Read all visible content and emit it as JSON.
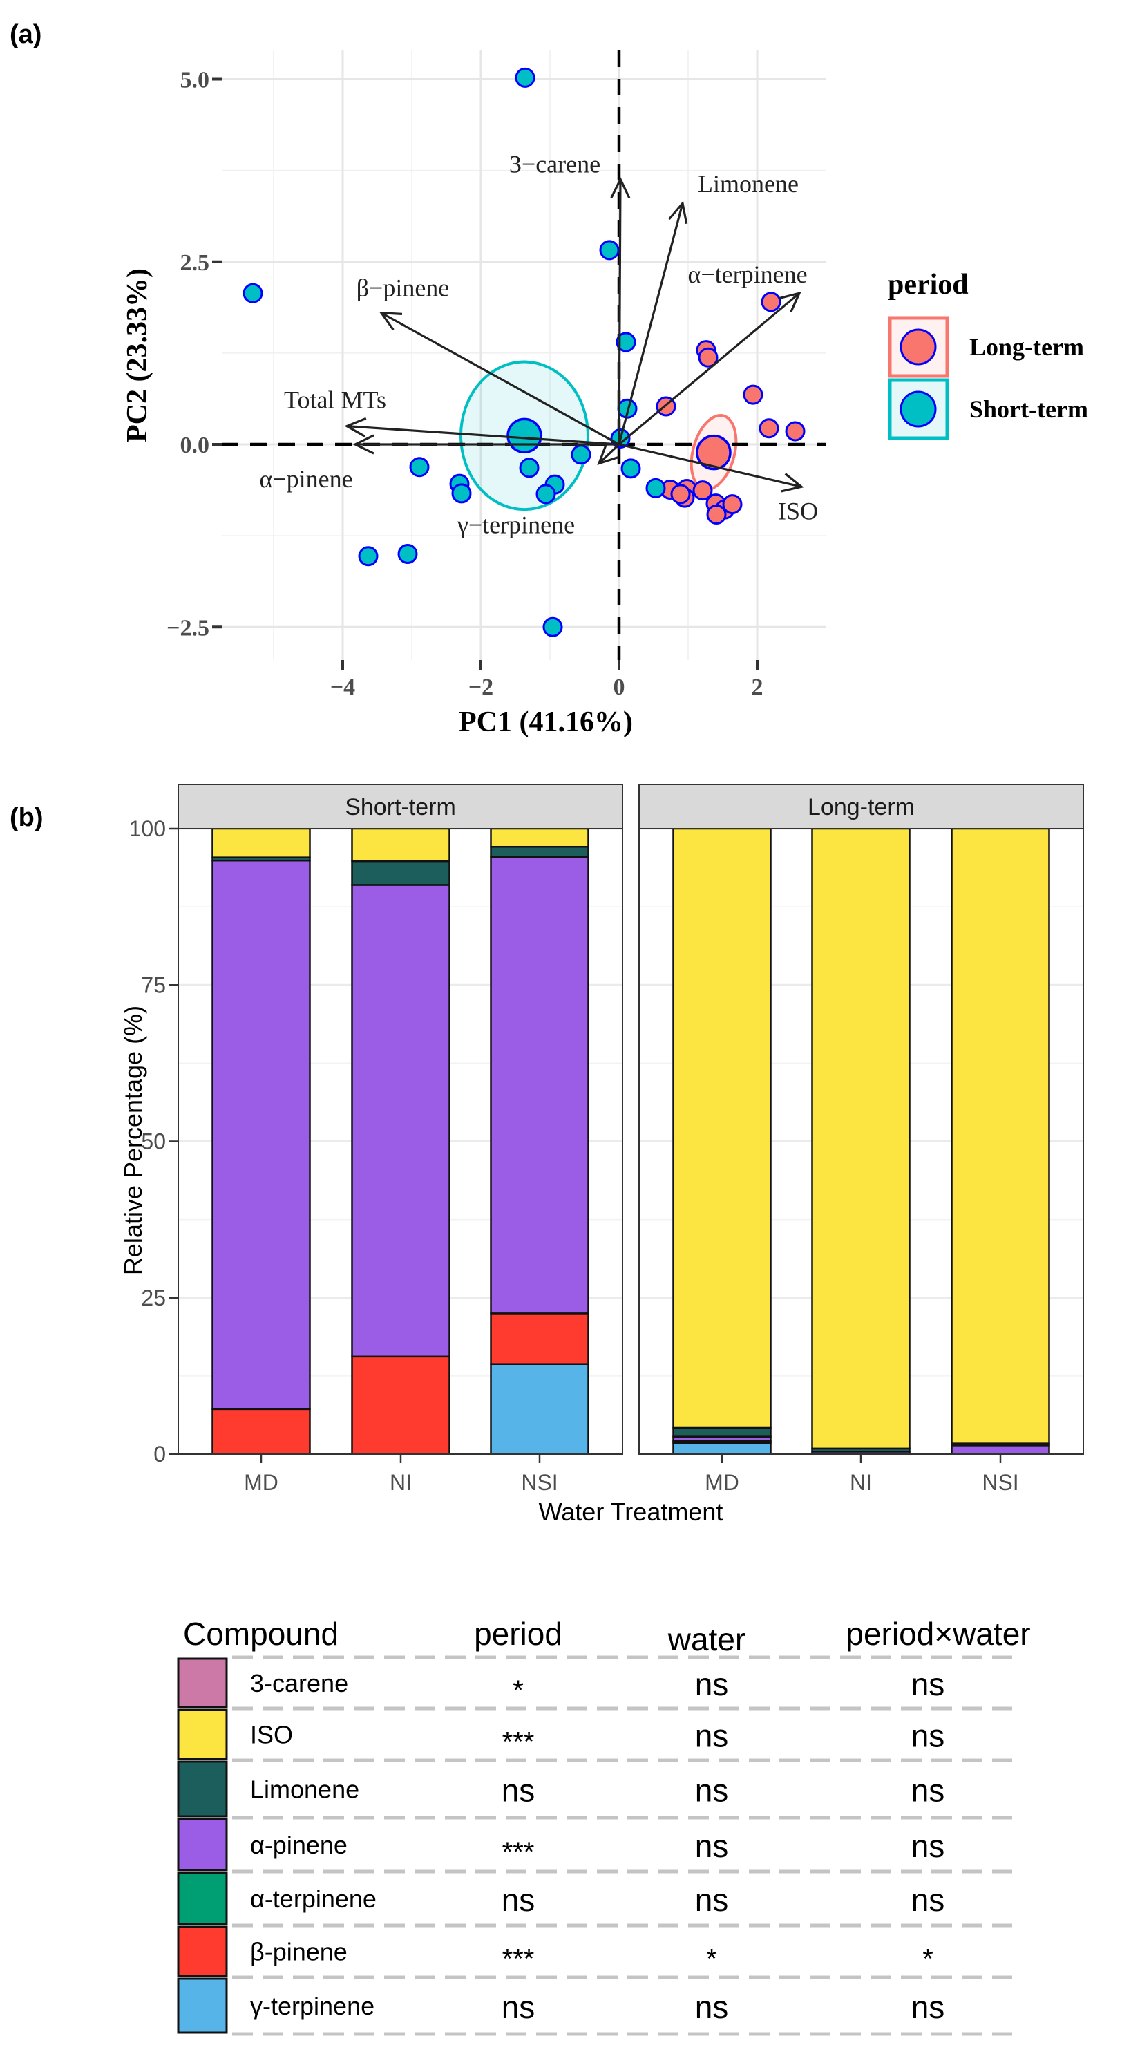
{
  "chart_data": [
    {
      "type": "scatter",
      "panel_label": "(a)",
      "title": "",
      "xlabel": "PC1 (41.16%)",
      "ylabel": "PC2 (23.33%)",
      "xlim": [
        -5.75,
        3.0
      ],
      "ylim": [
        -2.95,
        5.35
      ],
      "grid": true,
      "xticks": [
        -4,
        -2,
        0,
        2
      ],
      "xtick_labels": [
        "−4",
        "−2",
        "0",
        "2"
      ],
      "yticks": [
        -2.5,
        0,
        2.5,
        5
      ],
      "ytick_labels": [
        "−2.5",
        "0.0",
        "2.5",
        "5.0"
      ],
      "reference_lines": {
        "x": 0,
        "y": 0,
        "style": "dashed"
      },
      "legend": {
        "title": "period",
        "placement": "right",
        "entries": [
          {
            "label": "Long-term",
            "color": "#F8766D"
          },
          {
            "label": "Short-term",
            "color": "#00BFC4"
          }
        ]
      },
      "point_outline_color": "#0000FF",
      "series": [
        {
          "name": "Long-term",
          "color": "#F8766D",
          "points": [
            [
              2.2,
              1.95
            ],
            [
              1.26,
              1.29
            ],
            [
              1.29,
              1.19
            ],
            [
              1.94,
              0.68
            ],
            [
              0.68,
              0.52
            ],
            [
              2.17,
              0.22
            ],
            [
              2.55,
              0.18
            ],
            [
              0.74,
              -0.62
            ],
            [
              0.98,
              -0.61
            ],
            [
              0.95,
              -0.73
            ],
            [
              1.21,
              -0.63
            ],
            [
              1.4,
              -0.81
            ],
            [
              1.53,
              -0.89
            ],
            [
              1.64,
              -0.82
            ],
            [
              1.41,
              -0.96
            ],
            [
              0.89,
              -0.68
            ]
          ],
          "centroid": [
            1.37,
            -0.11
          ],
          "ellipse": {
            "center": [
              1.37,
              -0.11
            ],
            "semi_axis_x": 0.3,
            "semi_axis_y": 0.52,
            "rotation_deg": 15
          }
        },
        {
          "name": "Short-term",
          "color": "#00BFC4",
          "points": [
            [
              -1.36,
              5.02
            ],
            [
              -5.3,
              2.07
            ],
            [
              -0.14,
              2.66
            ],
            [
              0.1,
              1.4
            ],
            [
              0.12,
              0.49
            ],
            [
              0.02,
              0.08
            ],
            [
              -0.55,
              -0.14
            ],
            [
              -2.89,
              -0.31
            ],
            [
              -1.3,
              -0.32
            ],
            [
              -2.31,
              -0.54
            ],
            [
              -2.28,
              -0.67
            ],
            [
              -0.93,
              -0.55
            ],
            [
              -1.06,
              -0.68
            ],
            [
              0.17,
              -0.33
            ],
            [
              0.53,
              -0.6
            ],
            [
              -3.63,
              -1.53
            ],
            [
              -3.06,
              -1.5
            ],
            [
              -0.96,
              -2.5
            ]
          ],
          "centroid": [
            -1.37,
            0.12
          ],
          "ellipse": {
            "center": [
              -1.37,
              0.12
            ],
            "semi_axis_x": 0.92,
            "semi_axis_y": 1.01,
            "rotation_deg": 0
          }
        }
      ],
      "loadings": [
        {
          "name": "3−carene",
          "x": 0.02,
          "y": 3.63
        },
        {
          "name": "Limonene",
          "x": 0.92,
          "y": 3.3
        },
        {
          "name": "α−terpinene",
          "x": 2.61,
          "y": 2.07
        },
        {
          "name": "β−pinene",
          "x": -3.44,
          "y": 1.8
        },
        {
          "name": "Total MTs",
          "x": -3.94,
          "y": 0.25
        },
        {
          "name": "α−pinene",
          "x": -3.82,
          "y": 0.0
        },
        {
          "name": "γ−terpinene",
          "x": -0.29,
          "y": -0.26
        },
        {
          "name": "ISO",
          "x": 2.64,
          "y": -0.58
        }
      ]
    },
    {
      "type": "bar",
      "stacked": true,
      "panel_label": "(b)",
      "title": "",
      "xlabel": "Water Treatment",
      "ylabel": "Relative Percentage (%)",
      "ylim": [
        0,
        100
      ],
      "yticks": [
        0,
        25,
        50,
        75,
        100
      ],
      "ytick_labels": [
        "0",
        "25",
        "50",
        "75",
        "100"
      ],
      "grid": true,
      "categories": [
        "MD",
        "NI",
        "NSI"
      ],
      "compounds": [
        "3-carene",
        "ISO",
        "Limonene",
        "α-pinene",
        "α-terpinene",
        "β-pinene",
        "γ-terpinene"
      ],
      "colors": [
        "#CC79A7",
        "#FDE541",
        "#1B5E5B",
        "#9B5DE5",
        "#009E73",
        "#FF3B2F",
        "#56B4E9"
      ],
      "facets": [
        {
          "name": "Short-term",
          "series": [
            {
              "name": "3-carene",
              "values": [
                0,
                0,
                0
              ]
            },
            {
              "name": "ISO",
              "values": [
                4.6,
                5.2,
                2.9
              ]
            },
            {
              "name": "Limonene",
              "values": [
                0.5,
                3.8,
                1.6
              ]
            },
            {
              "name": "α-pinene",
              "values": [
                87.7,
                75.4,
                73.0
              ]
            },
            {
              "name": "α-terpinene",
              "values": [
                0,
                0,
                0
              ]
            },
            {
              "name": "β-pinene",
              "values": [
                7.2,
                15.6,
                8.1
              ]
            },
            {
              "name": "γ-terpinene",
              "values": [
                0,
                0,
                14.4
              ]
            }
          ]
        },
        {
          "name": "Long-term",
          "series": [
            {
              "name": "3-carene",
              "values": [
                0,
                0,
                0
              ]
            },
            {
              "name": "ISO",
              "values": [
                95.8,
                99.1,
                98.3
              ]
            },
            {
              "name": "Limonene",
              "values": [
                1.4,
                0.5,
                0.3
              ]
            },
            {
              "name": "α-pinene",
              "values": [
                0.7,
                0.4,
                1.4
              ]
            },
            {
              "name": "α-terpinene",
              "values": [
                0,
                0,
                0
              ]
            },
            {
              "name": "β-pinene",
              "values": [
                0.3,
                0,
                0
              ]
            },
            {
              "name": "γ-terpinene",
              "values": [
                1.8,
                0,
                0
              ]
            }
          ]
        }
      ]
    }
  ],
  "table": {
    "headers": [
      "Compound",
      "period",
      "water",
      "period×water"
    ],
    "rows": [
      {
        "compound": "3-carene",
        "period": "*",
        "water": "ns",
        "interaction": "ns"
      },
      {
        "compound": "ISO",
        "period": "***",
        "water": "ns",
        "interaction": "ns"
      },
      {
        "compound": "Limonene",
        "period": "ns",
        "water": "ns",
        "interaction": "ns"
      },
      {
        "compound": "α-pinene",
        "period": "***",
        "water": "ns",
        "interaction": "ns"
      },
      {
        "compound": "α-terpinene",
        "period": "ns",
        "water": "ns",
        "interaction": "ns"
      },
      {
        "compound": "β-pinene",
        "period": "***",
        "water": "*",
        "interaction": "*"
      },
      {
        "compound": "γ-terpinene",
        "period": "ns",
        "water": "ns",
        "interaction": "ns"
      }
    ]
  }
}
